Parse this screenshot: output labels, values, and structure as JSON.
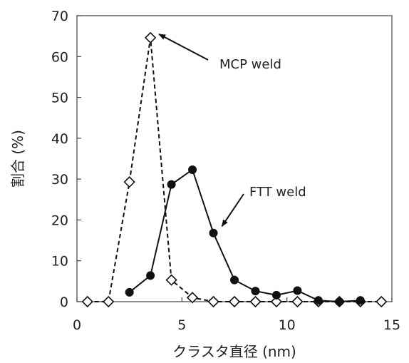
{
  "chart_data": {
    "type": "line",
    "title": "",
    "xlabel": "クラスタ直径 (nm)",
    "ylabel": "割合 (%)",
    "xlim": [
      0,
      15
    ],
    "ylim": [
      0,
      70
    ],
    "xticks": [
      0,
      5,
      10,
      15
    ],
    "yticks": [
      0,
      10,
      20,
      30,
      40,
      50,
      60,
      70
    ],
    "grid": false,
    "legend": "none",
    "series": [
      {
        "name": "MCP weld",
        "line_style": "dashed",
        "marker": "open-diamond",
        "color": "#111111",
        "x": [
          0.5,
          1.5,
          2.5,
          3.5,
          4.5,
          5.5,
          6.5,
          7.5,
          8.5,
          9.5,
          10.5,
          11.5,
          12.5,
          13.5,
          14.5
        ],
        "y": [
          0,
          0,
          29.3,
          64.6,
          5.3,
          1.0,
          0,
          0,
          0,
          0,
          0,
          0,
          0,
          0,
          0
        ]
      },
      {
        "name": "FTT weld",
        "line_style": "solid",
        "marker": "filled-circle",
        "color": "#111111",
        "x": [
          2.5,
          3.5,
          4.5,
          5.5,
          6.5,
          7.5,
          8.5,
          9.5,
          10.5,
          11.5,
          12.5,
          13.5
        ],
        "y": [
          2.3,
          6.4,
          28.7,
          32.3,
          16.8,
          5.3,
          2.6,
          1.6,
          2.7,
          0.3,
          0,
          0.3
        ]
      }
    ],
    "annotations": [
      {
        "text": "MCP weld",
        "target_series": "MCP weld",
        "target_x": 3.5,
        "target_y": 64.6
      },
      {
        "text": "FTT weld",
        "target_series": "FTT weld",
        "target_x": 6.7,
        "target_y": 19.5
      }
    ]
  }
}
